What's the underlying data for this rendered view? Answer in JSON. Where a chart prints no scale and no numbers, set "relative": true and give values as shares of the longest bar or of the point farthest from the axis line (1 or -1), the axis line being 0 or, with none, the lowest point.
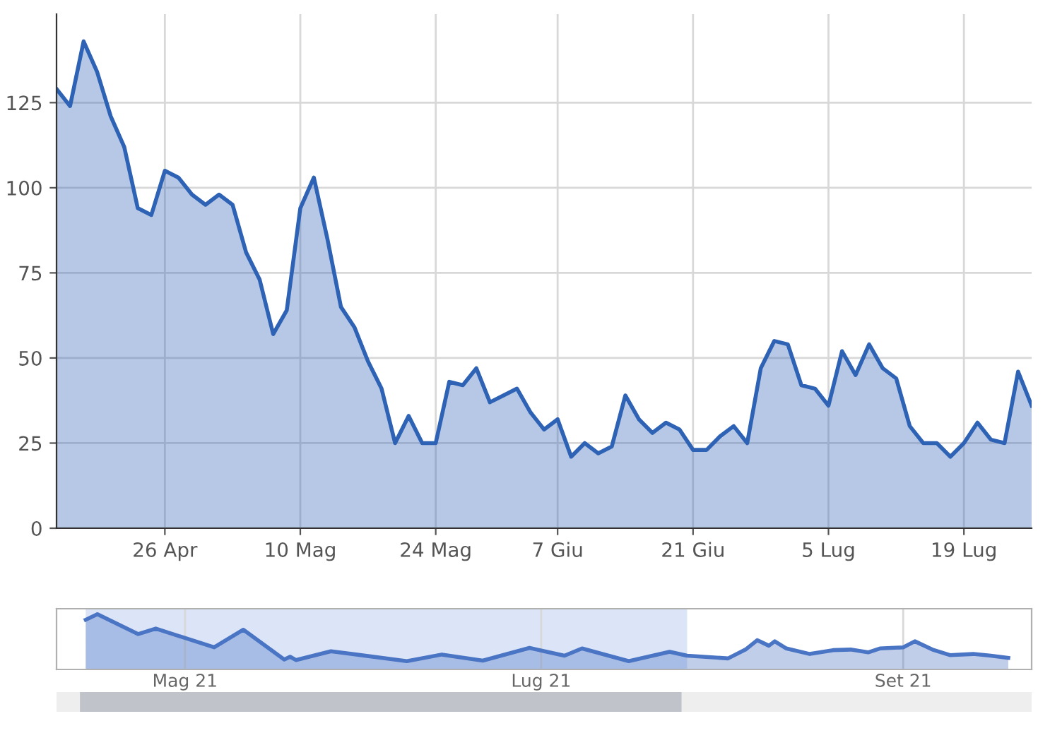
{
  "chart_data": [
    {
      "type": "area",
      "categories": [
        null,
        null,
        null,
        null,
        null,
        null,
        null,
        null,
        "26 Apr",
        null,
        null,
        null,
        null,
        null,
        null,
        null,
        null,
        null,
        "10 Mag",
        null,
        null,
        null,
        null,
        null,
        null,
        null,
        null,
        null,
        "24 Mag",
        null,
        null,
        null,
        null,
        null,
        null,
        null,
        null,
        "7 Giu",
        null,
        null,
        null,
        null,
        null,
        null,
        null,
        null,
        null,
        "21 Giu",
        null,
        null,
        null,
        null,
        null,
        null,
        null,
        null,
        null,
        "5 Lug",
        null,
        null,
        null,
        null,
        null,
        null,
        null,
        null,
        null,
        "19 Lug",
        null,
        null,
        null,
        null,
        null
      ],
      "series": [
        {
          "color": "#2e62b5",
          "values": [
            129,
            124,
            143,
            134,
            121,
            112,
            94,
            92,
            105,
            103,
            98,
            95,
            98,
            95,
            81,
            73,
            57,
            64,
            94,
            103,
            85,
            65,
            59,
            49,
            41,
            25,
            33,
            25,
            25,
            43,
            42,
            47,
            37,
            39,
            41,
            34,
            29,
            32,
            21,
            25,
            22,
            24,
            39,
            32,
            28,
            31,
            29,
            23,
            23,
            27,
            30,
            25,
            47,
            55,
            54,
            42,
            41,
            36,
            52,
            45,
            54,
            47,
            44,
            30,
            25,
            25,
            21,
            25,
            31,
            26,
            25,
            46,
            36
          ]
        }
      ],
      "ylim": [
        0,
        151
      ],
      "yticks": [
        0,
        25,
        50,
        75,
        100,
        125
      ],
      "grid": true,
      "marker": "none",
      "line_style": "solid"
    },
    {
      "type": "area",
      "relative": true,
      "tick_labels": "x",
      "series": [
        {
          "color": "#4a74c4",
          "x": [
            "2021-04-14",
            "2021-04-16",
            "2021-04-23",
            "2021-04-26",
            "2021-05-06",
            "2021-05-11",
            "2021-05-18",
            "2021-05-19",
            "2021-05-20",
            "2021-05-26",
            "2021-06-08",
            "2021-06-14",
            "2021-06-21",
            "2021-06-29",
            "2021-07-05",
            "2021-07-08",
            "2021-07-16",
            "2021-07-23",
            "2021-07-26",
            "2021-08-02",
            "2021-08-05",
            "2021-08-07",
            "2021-08-09",
            "2021-08-10",
            "2021-08-12",
            "2021-08-16",
            "2021-08-20",
            "2021-08-23",
            "2021-08-26",
            "2021-08-28",
            "2021-09-01",
            "2021-09-03",
            "2021-09-06",
            "2021-09-09",
            "2021-09-13",
            "2021-09-16",
            "2021-09-19"
          ],
          "values": [
            0.9,
            1.0,
            0.64,
            0.74,
            0.4,
            0.72,
            0.18,
            0.23,
            0.17,
            0.33,
            0.15,
            0.27,
            0.16,
            0.39,
            0.25,
            0.38,
            0.15,
            0.32,
            0.25,
            0.2,
            0.36,
            0.53,
            0.43,
            0.51,
            0.38,
            0.28,
            0.35,
            0.36,
            0.31,
            0.38,
            0.4,
            0.51,
            0.36,
            0.26,
            0.28,
            0.25,
            0.21
          ]
        }
      ],
      "xlim": [
        "2021-04-09",
        "2021-09-23"
      ],
      "xticks": [
        {
          "value": "2021-05-01",
          "label": "Mag 21"
        },
        {
          "value": "2021-07-01",
          "label": "Lug 21"
        },
        {
          "value": "2021-09-01",
          "label": "Set 21"
        }
      ],
      "bands": [
        {
          "axis": "x",
          "from": "2021-04-14",
          "to": "2021-07-26",
          "color": "#dbe5f7"
        }
      ],
      "grid": "x",
      "marker": "none",
      "line_style": "solid"
    }
  ]
}
